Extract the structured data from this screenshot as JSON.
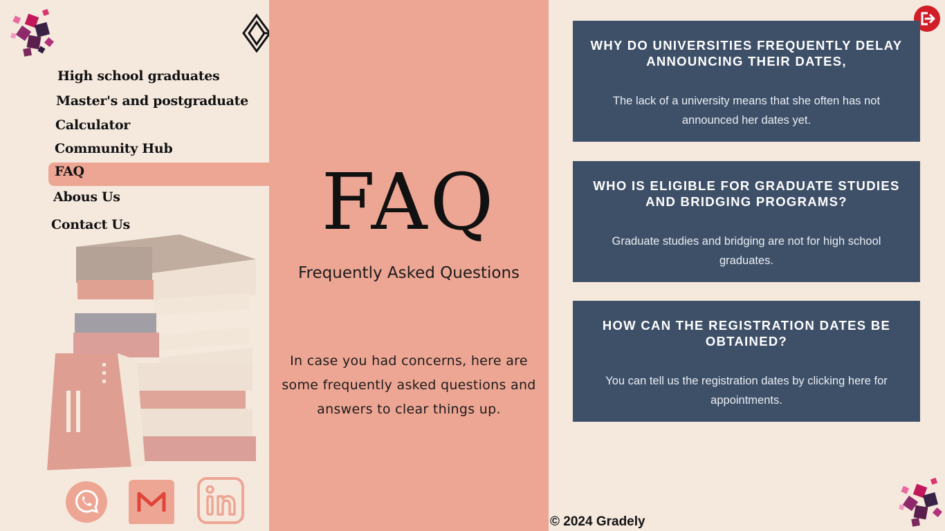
{
  "nav": {
    "items": [
      {
        "label": "High school graduates"
      },
      {
        "label": "Master's and postgraduate"
      },
      {
        "label": "Calculator"
      },
      {
        "label": "Community Hub"
      },
      {
        "label": "FAQ",
        "active": true
      },
      {
        "label": "Abous Us"
      },
      {
        "label": "Contact Us"
      }
    ]
  },
  "icons": {
    "logo": "interlocking-diamond-logo-icon",
    "decoration": "cubes-cluster-icon",
    "logout": "logout-icon",
    "whatsapp": "whatsapp-icon",
    "gmail": "gmail-icon",
    "linkedin": "linkedin-icon"
  },
  "colors": {
    "accent": "#eea694",
    "background": "#f5e9de",
    "card": "#3e5068",
    "logout": "#d01d27"
  },
  "hero": {
    "title": "FAQ",
    "subtitle": "Frequently Asked Questions",
    "description": "In case you had concerns, here are some frequently asked questions and answers to clear things up."
  },
  "faqs": [
    {
      "question": "WHY DO UNIVERSITIES FREQUENTLY DELAY ANNOUNCING THEIR DATES,",
      "answer": "The lack of a university means that she often has not announced her dates yet."
    },
    {
      "question": "WHO IS ELIGIBLE FOR GRADUATE STUDIES AND BRIDGING PROGRAMS?",
      "answer": "Graduate studies and bridging are not for high school graduates."
    },
    {
      "question": "HOW CAN THE REGISTRATION DATES BE OBTAINED?",
      "answer": "You can tell us the registration dates by clicking here for appointments."
    }
  ],
  "footer": {
    "copyright": "© 2024 Gradely"
  }
}
